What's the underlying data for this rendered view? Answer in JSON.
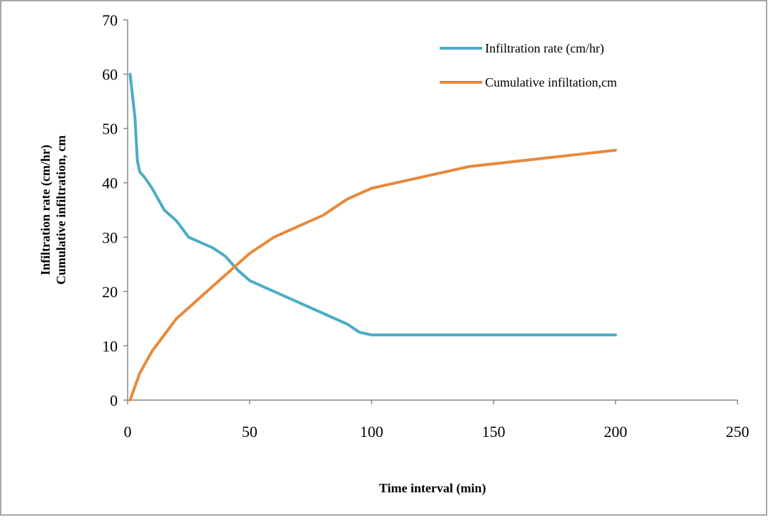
{
  "chart_data": {
    "type": "line",
    "xlabel": "Time interval (min)",
    "ylabel": [
      "Infiltration rate (cm/hr)",
      "Cumulative infiltration, cm"
    ],
    "xlim": [
      0,
      250
    ],
    "xticks": [
      0,
      50,
      100,
      150,
      200,
      250
    ],
    "ylim": [
      0,
      70
    ],
    "yticks": [
      0,
      10,
      20,
      30,
      40,
      50,
      60,
      70
    ],
    "grid": false,
    "legend": "top-right",
    "series": [
      {
        "name": "Infiltration rate (cm/hr)",
        "color": "#4bacc6",
        "x": [
          1,
          3,
          4,
          5,
          7,
          10,
          15,
          20,
          25,
          30,
          35,
          40,
          45,
          50,
          55,
          60,
          70,
          80,
          90,
          95,
          100,
          110,
          120,
          200
        ],
        "values": [
          60,
          52,
          44,
          42,
          41,
          39,
          35,
          33,
          30,
          29,
          28,
          26.5,
          24,
          22,
          21,
          20,
          18,
          16,
          14,
          12.5,
          12,
          12,
          12,
          12
        ]
      },
      {
        "name": "Cumulative infiltation,cm",
        "color": "#e8893a",
        "x": [
          1,
          5,
          10,
          15,
          20,
          25,
          30,
          40,
          50,
          60,
          70,
          80,
          90,
          100,
          120,
          140,
          160,
          180,
          200
        ],
        "values": [
          0,
          5,
          9,
          12,
          15,
          17,
          19,
          23,
          27,
          30,
          32,
          34,
          37,
          39,
          41,
          43,
          44,
          45,
          46
        ]
      }
    ]
  }
}
